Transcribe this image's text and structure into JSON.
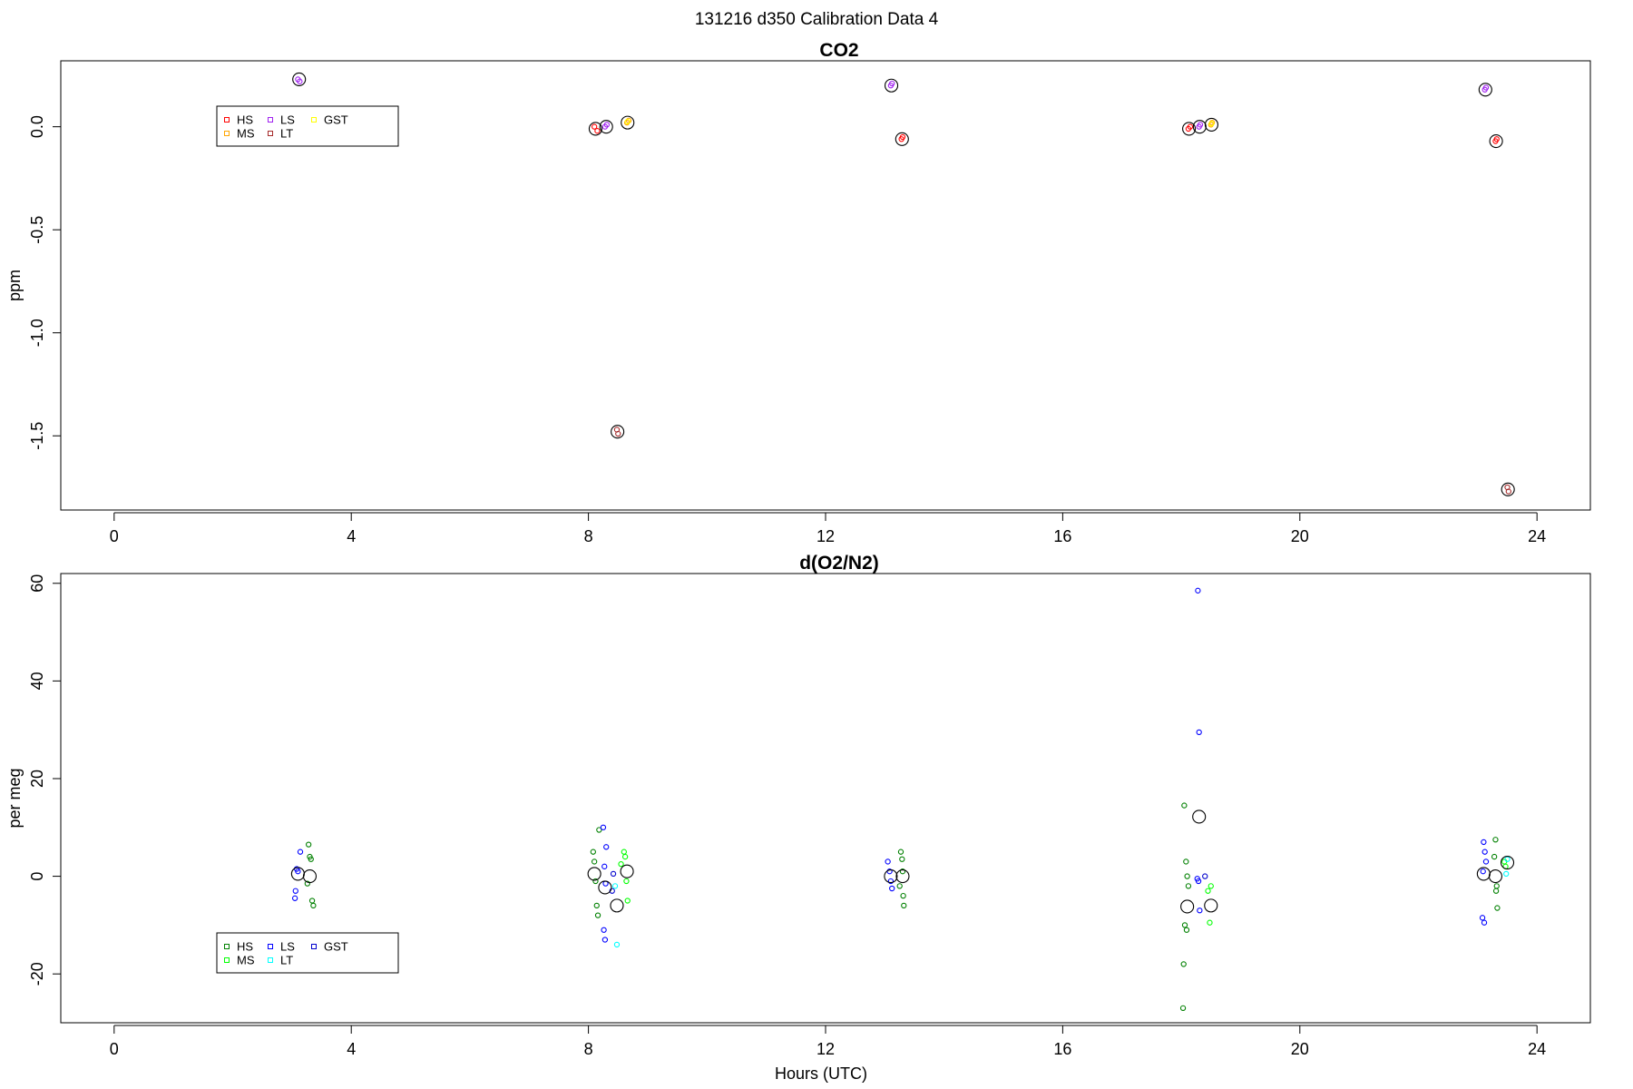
{
  "figure": {
    "supertitle": "131216   d350   Calibration Data 4"
  },
  "chart_data": [
    {
      "type": "scatter",
      "title": "CO2",
      "xlabel": "",
      "ylabel": "ppm",
      "xlim": [
        -0.9,
        24.9
      ],
      "ylim": [
        -1.86,
        0.32
      ],
      "xticks": [
        0,
        4,
        8,
        12,
        16,
        20,
        24
      ],
      "yticks": [
        0.0,
        -0.5,
        -1.0,
        -1.5
      ],
      "ytick_labels": [
        "0.0",
        "-0.5",
        "-1.0",
        "-1.5"
      ],
      "grid": false,
      "legend": {
        "placement": "top-left",
        "entries": [
          "HS",
          "MS",
          "LS",
          "LT",
          "GST"
        ]
      },
      "series": [
        {
          "name": "HS",
          "color": "#ff0000",
          "points": [
            [
              8.1,
              0.0
            ],
            [
              8.15,
              -0.02
            ],
            [
              13.28,
              -0.06
            ],
            [
              13.3,
              -0.05
            ],
            [
              18.12,
              -0.01
            ],
            [
              18.15,
              0.0
            ],
            [
              23.3,
              -0.07
            ],
            [
              23.32,
              -0.06
            ]
          ]
        },
        {
          "name": "MS",
          "color": "#ffa500",
          "points": [
            [
              8.65,
              0.02
            ],
            [
              8.68,
              0.03
            ],
            [
              18.5,
              0.01
            ],
            [
              18.52,
              0.02
            ]
          ]
        },
        {
          "name": "LS",
          "color": "#a020f0",
          "points": [
            [
              3.1,
              0.23
            ],
            [
              3.13,
              0.22
            ],
            [
              8.28,
              0.0
            ],
            [
              8.31,
              0.01
            ],
            [
              13.1,
              0.2
            ],
            [
              13.12,
              0.21
            ],
            [
              18.3,
              0.0
            ],
            [
              18.32,
              0.01
            ],
            [
              23.12,
              0.18
            ],
            [
              23.14,
              0.19
            ]
          ]
        },
        {
          "name": "LT",
          "color": "#a52a2a",
          "points": [
            [
              8.48,
              -1.47
            ],
            [
              8.5,
              -1.49
            ],
            [
              23.5,
              -1.75
            ],
            [
              23.52,
              -1.77
            ]
          ]
        },
        {
          "name": "GST",
          "color": "#ffff00",
          "points": [
            [
              8.66,
              0.025
            ],
            [
              18.51,
              0.015
            ]
          ]
        }
      ],
      "means": {
        "color": "#000000",
        "points": [
          [
            3.12,
            0.23
          ],
          [
            8.12,
            -0.01
          ],
          [
            8.3,
            0.0
          ],
          [
            8.66,
            0.02
          ],
          [
            8.49,
            -1.48
          ],
          [
            13.11,
            0.2
          ],
          [
            13.29,
            -0.06
          ],
          [
            18.13,
            -0.01
          ],
          [
            18.31,
            0.0
          ],
          [
            18.51,
            0.01
          ],
          [
            23.13,
            0.18
          ],
          [
            23.31,
            -0.07
          ],
          [
            23.51,
            -1.76
          ]
        ]
      }
    },
    {
      "type": "scatter",
      "title": "d(O2/N2)",
      "xlabel": "Hours (UTC)",
      "ylabel": "per meg",
      "xlim": [
        -0.9,
        24.9
      ],
      "ylim": [
        -30,
        62
      ],
      "xticks": [
        0,
        4,
        8,
        12,
        16,
        20,
        24
      ],
      "yticks": [
        60,
        40,
        20,
        0,
        -20
      ],
      "ytick_labels": [
        "60",
        "40",
        "20",
        "0",
        "-20"
      ],
      "grid": false,
      "legend": {
        "placement": "bottom-left",
        "entries": [
          "HS",
          "MS",
          "LS",
          "LT",
          "GST"
        ]
      },
      "series": [
        {
          "name": "HS",
          "color": "#008000",
          "points": [
            [
              3.28,
              6.5
            ],
            [
              3.3,
              4.0
            ],
            [
              3.32,
              3.5
            ],
            [
              3.26,
              -1.5
            ],
            [
              3.34,
              -5.0
            ],
            [
              3.36,
              -6.0
            ],
            [
              8.08,
              5.0
            ],
            [
              8.1,
              3.0
            ],
            [
              8.12,
              -1.0
            ],
            [
              8.14,
              -6.0
            ],
            [
              8.16,
              -8.0
            ],
            [
              8.18,
              9.5
            ],
            [
              13.27,
              5.0
            ],
            [
              13.29,
              3.5
            ],
            [
              13.3,
              1.0
            ],
            [
              13.25,
              -2.0
            ],
            [
              13.31,
              -4.0
            ],
            [
              13.32,
              -6.0
            ],
            [
              18.05,
              14.5
            ],
            [
              18.08,
              3.0
            ],
            [
              18.1,
              0.0
            ],
            [
              18.12,
              -2.0
            ],
            [
              18.06,
              -10.0
            ],
            [
              18.09,
              -11.0
            ],
            [
              18.04,
              -18.0
            ],
            [
              18.03,
              -27.0
            ],
            [
              23.3,
              7.5
            ],
            [
              23.28,
              4.0
            ],
            [
              23.32,
              -2.0
            ],
            [
              23.31,
              -3.0
            ],
            [
              23.33,
              -6.5
            ]
          ]
        },
        {
          "name": "MS",
          "color": "#00ff00",
          "points": [
            [
              8.6,
              5.0
            ],
            [
              8.62,
              4.0
            ],
            [
              8.64,
              -1.0
            ],
            [
              8.66,
              -5.0
            ],
            [
              8.55,
              2.5
            ],
            [
              18.45,
              -3.0
            ],
            [
              18.48,
              -9.5
            ],
            [
              18.5,
              -2.0
            ],
            [
              23.45,
              3.0
            ],
            [
              23.47,
              2.0
            ]
          ]
        },
        {
          "name": "LS",
          "color": "#0000ff",
          "points": [
            [
              3.08,
              1.5
            ],
            [
              3.1,
              1.0
            ],
            [
              3.06,
              -3.0
            ],
            [
              3.05,
              -4.5
            ],
            [
              3.14,
              5.0
            ],
            [
              8.25,
              10.0
            ],
            [
              8.3,
              6.0
            ],
            [
              8.27,
              2.0
            ],
            [
              8.29,
              -1.5
            ],
            [
              8.26,
              -11.0
            ],
            [
              8.28,
              -13.0
            ],
            [
              13.05,
              3.0
            ],
            [
              13.08,
              1.0
            ],
            [
              13.1,
              -1.0
            ],
            [
              13.12,
              -2.5
            ],
            [
              18.28,
              58.5
            ],
            [
              18.3,
              29.5
            ],
            [
              18.27,
              -0.5
            ],
            [
              18.29,
              -1.0
            ],
            [
              18.31,
              -7.0
            ],
            [
              23.1,
              7.0
            ],
            [
              23.12,
              5.0
            ],
            [
              23.14,
              3.0
            ],
            [
              23.09,
              1.0
            ],
            [
              23.08,
              -8.5
            ],
            [
              23.11,
              -9.5
            ]
          ]
        },
        {
          "name": "LT",
          "color": "#00ffff",
          "points": [
            [
              8.45,
              -2.0
            ],
            [
              8.48,
              -14.0
            ],
            [
              23.48,
              0.5
            ],
            [
              23.5,
              3.5
            ]
          ]
        },
        {
          "name": "GST",
          "color": "#0000cd",
          "points": [
            [
              8.4,
              -3.0
            ],
            [
              8.42,
              0.5
            ],
            [
              18.4,
              0.0
            ]
          ]
        }
      ],
      "means": {
        "color": "#000000",
        "points": [
          [
            3.1,
            0.5
          ],
          [
            3.3,
            0.0
          ],
          [
            8.1,
            0.5
          ],
          [
            8.28,
            -2.3
          ],
          [
            8.48,
            -6.0
          ],
          [
            8.65,
            1.0
          ],
          [
            13.1,
            0.0
          ],
          [
            13.3,
            0.0
          ],
          [
            18.1,
            -6.2
          ],
          [
            18.3,
            12.2
          ],
          [
            18.5,
            -6.0
          ],
          [
            23.1,
            0.5
          ],
          [
            23.3,
            0.0
          ],
          [
            23.5,
            2.8
          ]
        ]
      }
    }
  ]
}
